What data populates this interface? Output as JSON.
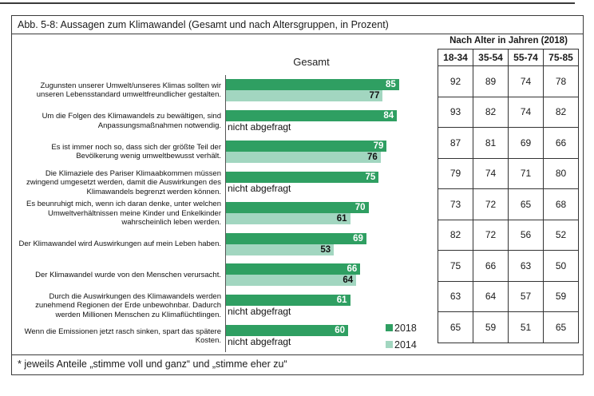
{
  "figure": {
    "title": "Abb. 5-8:  Aussagen zum Klimawandel (Gesamt und nach Altersgruppen, in Prozent)",
    "footnote": "* jeweils Anteile „stimme voll und ganz“ und „stimme eher zu“"
  },
  "chart_data": {
    "type": "bar",
    "orientation": "horizontal",
    "group_title": "Gesamt",
    "unit": "percent",
    "xlim": [
      0,
      100
    ],
    "grid": false,
    "legend_position": "bottom-right",
    "not_asked_label": "nicht abgefragt",
    "categories": [
      "Zugunsten unserer Umwelt/unseres Klimas sollten wir unseren Lebensstandard umweltfreundlicher gestalten.",
      "Um die Folgen des Klimawandels zu bewältigen, sind Anpassungsmaßnahmen notwendig.",
      "Es ist immer noch so, dass sich der größte Teil der Bevölkerung wenig umweltbewusst verhält.",
      "Die Klimaziele des Pariser Klimaabkommen müssen zwingend umgesetzt werden, damit die Auswirkungen des Klimawandels begrenzt werden können.",
      "Es beunruhigt mich, wenn ich daran denke, unter welchen Umweltverhältnissen meine Kinder und Enkelkinder wahrscheinlich leben werden.",
      "Der Klimawandel wird Auswirkungen auf mein Leben haben.",
      "Der Klimawandel wurde von den Menschen verursacht.",
      "Durch die Auswirkungen des Klimawandels werden zunehmend Regionen der Erde unbewohnbar. Dadurch werden Millionen Menschen zu Klimaflüchtlingen.",
      "Wenn die Emissionen jetzt rasch sinken, spart das spätere Kosten."
    ],
    "series": [
      {
        "name": "2018",
        "color": "#2f9f62",
        "values": [
          85,
          84,
          79,
          75,
          70,
          69,
          66,
          61,
          60
        ]
      },
      {
        "name": "2014",
        "color": "#a2d6c0",
        "values": [
          77,
          null,
          76,
          null,
          61,
          53,
          64,
          null,
          null
        ]
      }
    ]
  },
  "age_table": {
    "title": "Nach Alter in Jahren (2018)",
    "columns": [
      "18-34",
      "35-54",
      "55-74",
      "75-85"
    ],
    "rows": [
      [
        92,
        89,
        74,
        78
      ],
      [
        93,
        82,
        74,
        82
      ],
      [
        87,
        81,
        69,
        66
      ],
      [
        79,
        74,
        71,
        80
      ],
      [
        73,
        72,
        65,
        68
      ],
      [
        82,
        72,
        56,
        52
      ],
      [
        75,
        66,
        63,
        50
      ],
      [
        63,
        64,
        57,
        59
      ],
      [
        65,
        59,
        51,
        65
      ]
    ]
  }
}
